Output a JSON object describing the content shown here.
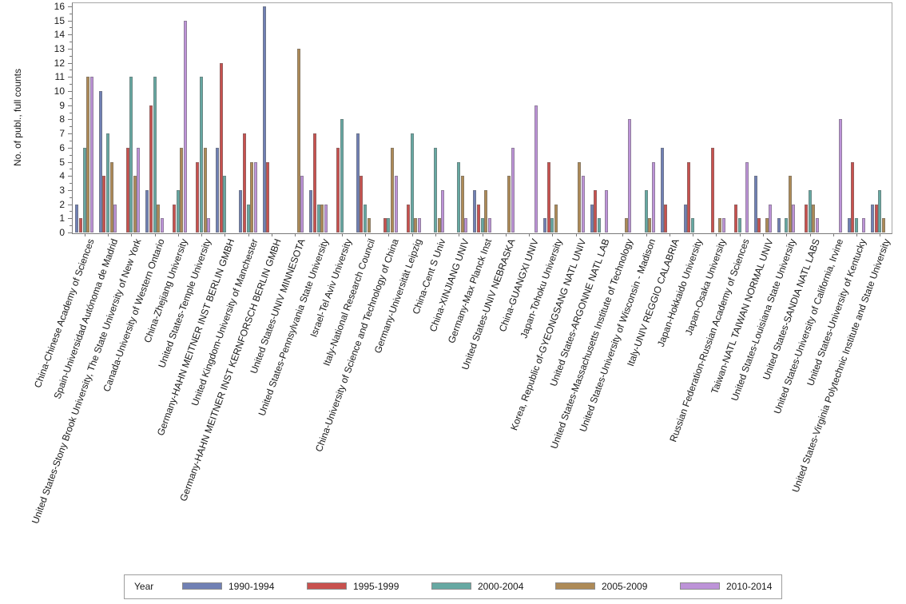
{
  "chart": {
    "y_axis_title": "No. of publ., full counts",
    "legend_title": "Year"
  },
  "chart_data": {
    "type": "bar",
    "title": "",
    "xlabel": "",
    "ylabel": "No. of publ., full counts",
    "ylim": [
      0,
      16
    ],
    "y_tick_interval": 1,
    "y_minor_tick_interval": 0.5,
    "grid": false,
    "legend_position": "bottom",
    "legend_title": "Year",
    "y_ticks": [
      "0",
      "1",
      "2",
      "3",
      "4",
      "5",
      "6",
      "7",
      "8",
      "9",
      "10",
      "11",
      "12",
      "13",
      "14",
      "15",
      "16"
    ],
    "categories": [
      "China-Chinese Academy of Sciences",
      "Spain-Universidad Autónoma de Madrid",
      "United States-Stony Brook University, The State University of New York",
      "Canada-University of Western Ontario",
      "China-Zhejiang University",
      "United States-Temple University",
      "Germany-HAHN MEITNER INST BERLIN GMBH",
      "United Kingdom-University of Manchester",
      "Germany-HAHN MEITNER INST KERNFORSCH BERLIN GMBH",
      "United States-UNIV MINNESOTA",
      "United States-Pennsylvania State University",
      "Israel-Tel Aviv University",
      "Italy-National Research Council",
      "China-University of Science and Technology of China",
      "Germany-Universität Leipzig",
      "China-Cent S Univ",
      "China-XINJIANG UNIV",
      "Germany-Max Planck Inst",
      "United States-UNIV NEBRASKA",
      "China-GUANGXI UNIV",
      "Japan-Tohoku University",
      "Korea, Republic of-GYEONGSANG NATL UNIV",
      "United States-ARGONNE NATL LAB",
      "United States-Massachusetts Institute of Technology",
      "United States-University of Wisconsin - Madison",
      "Italy-UNIV REGGIO CALABRIA",
      "Japan-Hokkaido University",
      "Japan-Osaka University",
      "Russian Federation-Russian Academy of Sciences",
      "Taiwan-NATL TAIWAN NORMAL UNIV",
      "United States-Louisiana State University",
      "United States-SANDIA NATL LABS",
      "United States-University of California, Irvine",
      "United States-University of Kentucky",
      "United States-Virginia Polytechnic Institute and State University"
    ],
    "series": [
      {
        "name": "1990-1994",
        "color": "#7080b4",
        "values": [
          2,
          10,
          0,
          3,
          0,
          0,
          6,
          3,
          16,
          0,
          3,
          0,
          7,
          0,
          0,
          0,
          0,
          3,
          0,
          0,
          1,
          0,
          2,
          0,
          0,
          6,
          2,
          0,
          0,
          4,
          1,
          0,
          0,
          1,
          2
        ]
      },
      {
        "name": "1995-1999",
        "color": "#c8514e",
        "values": [
          1,
          4,
          6,
          9,
          2,
          5,
          12,
          7,
          5,
          0,
          7,
          6,
          4,
          1,
          2,
          0,
          0,
          2,
          0,
          0,
          5,
          0,
          3,
          0,
          0,
          2,
          5,
          6,
          2,
          1,
          0,
          2,
          0,
          5,
          2
        ]
      },
      {
        "name": "2000-2004",
        "color": "#66a8a2",
        "values": [
          6,
          7,
          11,
          11,
          3,
          11,
          4,
          2,
          0,
          0,
          2,
          8,
          2,
          1,
          7,
          6,
          5,
          1,
          0,
          0,
          1,
          0,
          1,
          0,
          3,
          0,
          1,
          0,
          1,
          0,
          1,
          3,
          0,
          1,
          3
        ]
      },
      {
        "name": "2005-2009",
        "color": "#ad8a57",
        "values": [
          11,
          5,
          4,
          2,
          6,
          6,
          0,
          5,
          0,
          13,
          2,
          0,
          1,
          6,
          1,
          1,
          4,
          3,
          4,
          0,
          2,
          5,
          0,
          1,
          1,
          0,
          0,
          1,
          0,
          1,
          4,
          2,
          0,
          0,
          1
        ]
      },
      {
        "name": "2010-2014",
        "color": "#bd93d8",
        "values": [
          11,
          2,
          6,
          1,
          15,
          1,
          0,
          5,
          0,
          4,
          2,
          0,
          0,
          4,
          1,
          3,
          1,
          1,
          6,
          9,
          0,
          4,
          3,
          8,
          5,
          0,
          0,
          1,
          5,
          2,
          2,
          1,
          8,
          1,
          0
        ]
      }
    ]
  }
}
